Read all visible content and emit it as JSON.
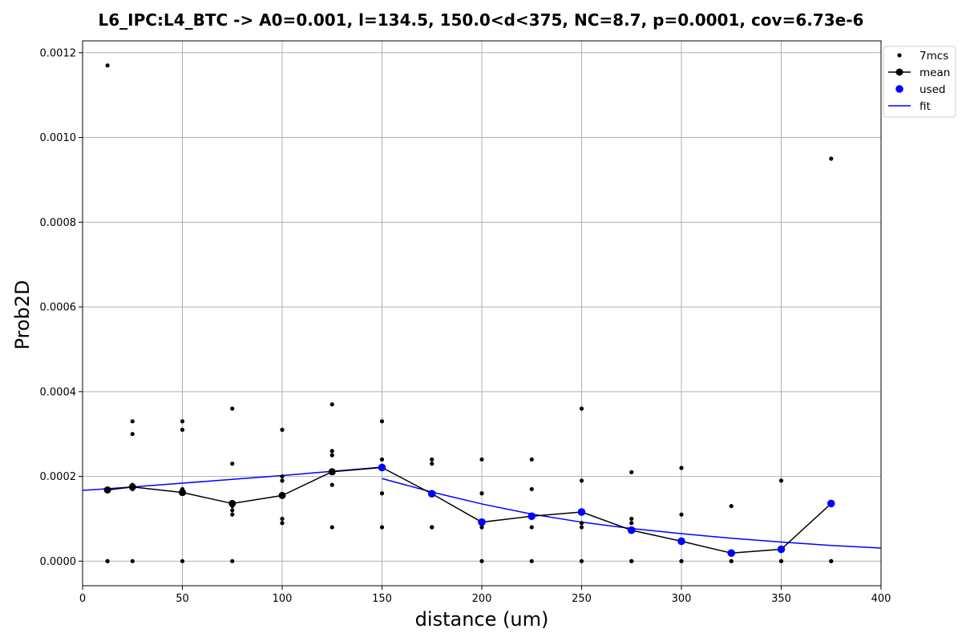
{
  "chart_data": {
    "type": "scatter",
    "title": "L6_IPC:L4_BTC -> A0=0.001, l=134.5, 150.0<d<375, NC=8.7, p=0.0001, cov=6.73e-6",
    "xlabel": "distance (um)",
    "ylabel": "Prob2D",
    "xlim": [
      0,
      400
    ],
    "ylim": [
      -5.8e-05,
      0.001228
    ],
    "x_ticks": [
      0,
      50,
      100,
      150,
      200,
      250,
      300,
      350,
      400
    ],
    "x_tick_labels": [
      "0",
      "50",
      "100",
      "150",
      "200",
      "250",
      "300",
      "350",
      "400"
    ],
    "y_ticks": [
      0,
      0.0002,
      0.0004,
      0.0006,
      0.0008,
      0.001,
      0.0012
    ],
    "y_tick_labels": [
      "0.0000",
      "0.0002",
      "0.0004",
      "0.0006",
      "0.0008",
      "0.0010",
      "0.0012"
    ],
    "grid": true,
    "legend_position": "upper right, outside plot",
    "legend": [
      "7mcs",
      "mean",
      "used",
      "fit"
    ],
    "colors": {
      "mcs": "#000000",
      "mean": "#000000",
      "used": "#0000ff",
      "fit": "#0000ff",
      "grid": "#b0b0b0"
    },
    "series": [
      {
        "name": "7mcs",
        "kind": "scatter",
        "points": [
          [
            12.5,
            0.00117
          ],
          [
            12.5,
            0.00017
          ],
          [
            12.5,
            0.000165
          ],
          [
            12.5,
            0.0
          ],
          [
            12.5,
            0.0
          ],
          [
            25,
            0.00033
          ],
          [
            25,
            0.0003
          ],
          [
            25,
            0.00018
          ],
          [
            25,
            0.00017
          ],
          [
            25,
            0.0
          ],
          [
            50,
            0.00033
          ],
          [
            50,
            0.00031
          ],
          [
            50,
            0.00017
          ],
          [
            50,
            0.000165
          ],
          [
            50,
            0.00016
          ],
          [
            50,
            0.0
          ],
          [
            75,
            0.00036
          ],
          [
            75,
            0.00023
          ],
          [
            75,
            0.00013
          ],
          [
            75,
            0.00012
          ],
          [
            75,
            0.00011
          ],
          [
            75,
            0.0
          ],
          [
            100,
            0.00031
          ],
          [
            100,
            0.0002
          ],
          [
            100,
            0.00019
          ],
          [
            100,
            0.0001
          ],
          [
            100,
            9e-05
          ],
          [
            125,
            0.00037
          ],
          [
            125,
            0.00026
          ],
          [
            125,
            0.00025
          ],
          [
            125,
            0.00021
          ],
          [
            125,
            0.00018
          ],
          [
            125,
            8e-05
          ],
          [
            150,
            0.00033
          ],
          [
            150,
            0.00024
          ],
          [
            150,
            0.00022
          ],
          [
            150,
            0.00016
          ],
          [
            150,
            8e-05
          ],
          [
            175,
            0.00024
          ],
          [
            175,
            0.00023
          ],
          [
            175,
            0.00016
          ],
          [
            175,
            8e-05
          ],
          [
            175,
            8e-05
          ],
          [
            200,
            0.00024
          ],
          [
            200,
            0.00016
          ],
          [
            200,
            9e-05
          ],
          [
            200,
            8e-05
          ],
          [
            200,
            0.0
          ],
          [
            225,
            0.00024
          ],
          [
            225,
            0.00017
          ],
          [
            225,
            8e-05
          ],
          [
            225,
            0.0
          ],
          [
            250,
            0.00036
          ],
          [
            250,
            0.00019
          ],
          [
            250,
            9e-05
          ],
          [
            250,
            8e-05
          ],
          [
            250,
            0.0
          ],
          [
            275,
            0.00021
          ],
          [
            275,
            0.0001
          ],
          [
            275,
            9e-05
          ],
          [
            275,
            0.0
          ],
          [
            275,
            0.0
          ],
          [
            300,
            0.00022
          ],
          [
            300,
            0.00011
          ],
          [
            300,
            0.0
          ],
          [
            300,
            0.0
          ],
          [
            325,
            0.00013
          ],
          [
            325,
            0.0
          ],
          [
            325,
            0.0
          ],
          [
            350,
            0.00019
          ],
          [
            350,
            0.0
          ],
          [
            350,
            0.0
          ],
          [
            375,
            0.00095
          ],
          [
            375,
            0.0
          ],
          [
            375,
            0.0
          ]
        ]
      },
      {
        "name": "mean",
        "kind": "line-marker",
        "x": [
          12.5,
          25,
          50,
          75,
          100,
          125,
          150,
          175,
          200,
          225,
          250,
          275,
          300,
          325,
          350,
          375
        ],
        "y": [
          0.000168,
          0.000175,
          0.000162,
          0.000136,
          0.000155,
          0.000211,
          0.000221,
          0.000159,
          9.2e-05,
          0.000106,
          0.000116,
          7.3e-05,
          4.7e-05,
          1.9e-05,
          2.8e-05,
          0.000136
        ]
      },
      {
        "name": "used",
        "kind": "scatter",
        "x": [
          150,
          175,
          200,
          225,
          250,
          275,
          300,
          325,
          350,
          375
        ],
        "y": [
          0.000221,
          0.000159,
          9.2e-05,
          0.000106,
          0.000116,
          7.3e-05,
          4.7e-05,
          1.9e-05,
          2.8e-05,
          0.000136
        ]
      },
      {
        "name": "fit",
        "kind": "line",
        "segments": [
          {
            "x": [
              0,
              25,
              50,
              75,
              100,
              125,
              150
            ],
            "y": [
              0.000167,
              0.000175,
              0.000184,
              0.000193,
              0.000202,
              0.000212,
              0.000222
            ]
          },
          {
            "x": [
              150,
              175,
              200,
              225,
              250,
              275,
              300,
              325,
              350,
              375,
              400
            ],
            "y": [
              0.000195,
              0.000163,
              0.000135,
              0.000111,
              9.2e-05,
              7.7e-05,
              6.5e-05,
              5.4e-05,
              4.5e-05,
              3.7e-05,
              3.1e-05
            ]
          }
        ]
      }
    ]
  }
}
